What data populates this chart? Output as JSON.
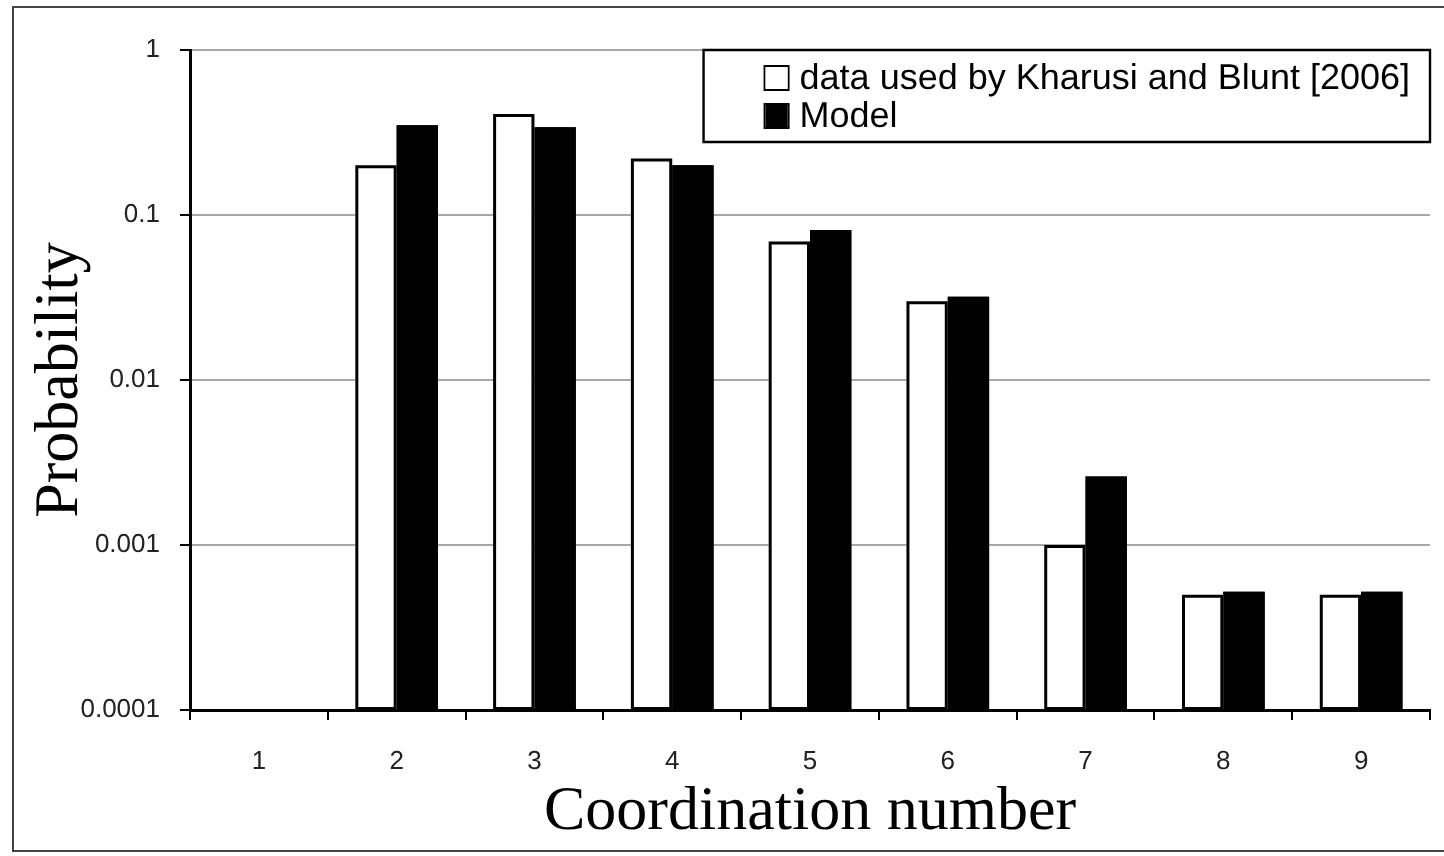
{
  "chart_data": {
    "type": "bar",
    "xlabel": "Coordination number",
    "ylabel": "Probability",
    "categories": [
      "1",
      "2",
      "3",
      "4",
      "5",
      "6",
      "7",
      "8",
      "9"
    ],
    "series": [
      {
        "name": "data used by Kharusi and Blunt [2006]",
        "color": "#ffffff",
        "values": [
          null,
          0.2,
          0.41,
          0.22,
          0.069,
          0.03,
          0.001,
          0.0005,
          0.0005
        ]
      },
      {
        "name": "Model",
        "color": "#000000",
        "values": [
          null,
          0.35,
          0.34,
          0.2,
          0.081,
          0.032,
          0.0026,
          0.00052,
          0.00052
        ]
      }
    ],
    "log": true,
    "ylim": [
      0.0001,
      1
    ],
    "yticks": [
      0.0001,
      0.001,
      0.01,
      0.1,
      1
    ],
    "grid": "y",
    "legend": "top right"
  }
}
